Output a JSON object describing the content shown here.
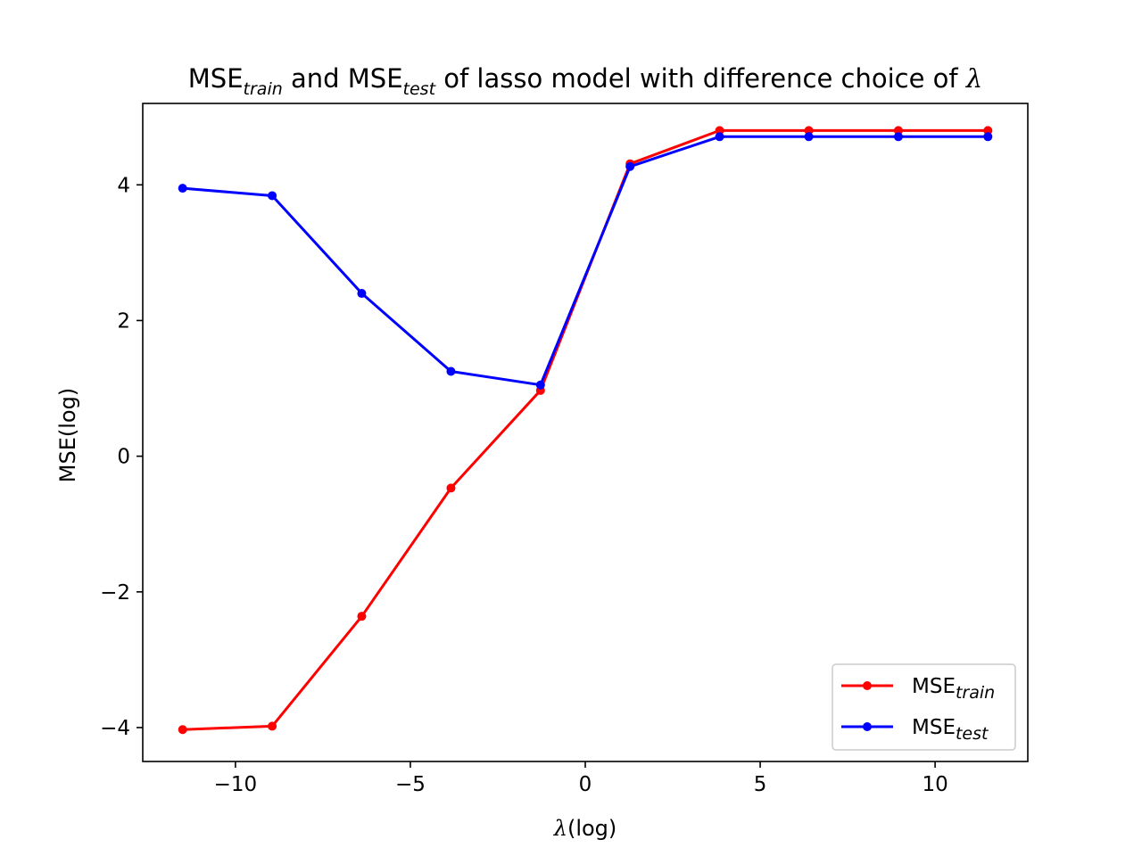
{
  "chart_data": {
    "type": "line",
    "title": {
      "part1_base": "MSE",
      "part1_sub": "train",
      "middle": " and ",
      "part2_base": "MSE",
      "part2_sub": "test",
      "end": " of lasso model with difference choice of ",
      "symbol": "λ"
    },
    "xlabel": {
      "symbol": "λ",
      "text": "(log)"
    },
    "ylabel": "MSE(log)",
    "xlim": [
      -12.65,
      12.65
    ],
    "ylim": [
      -4.5,
      5.2
    ],
    "xticks": [
      -10,
      -5,
      0,
      5,
      10
    ],
    "xtick_labels": [
      "−10",
      "−5",
      "0",
      "5",
      "10"
    ],
    "yticks": [
      -4,
      -2,
      0,
      2,
      4
    ],
    "ytick_labels": [
      "−4",
      "−2",
      "0",
      "2",
      "4"
    ],
    "grid": false,
    "legend_position": "lower-right",
    "x": [
      -11.51,
      -8.95,
      -6.39,
      -3.84,
      -1.28,
      1.28,
      3.84,
      6.39,
      8.95,
      11.51
    ],
    "series": [
      {
        "name_base": "MSE",
        "name_sub": "train",
        "color": "#ff0000",
        "values": [
          -4.03,
          -3.98,
          -2.36,
          -0.47,
          0.97,
          4.31,
          4.8,
          4.8,
          4.8,
          4.8
        ]
      },
      {
        "name_base": "MSE",
        "name_sub": "test",
        "color": "#0000ff",
        "values": [
          3.95,
          3.84,
          2.4,
          1.25,
          1.05,
          4.27,
          4.71,
          4.71,
          4.71,
          4.71
        ]
      }
    ]
  }
}
